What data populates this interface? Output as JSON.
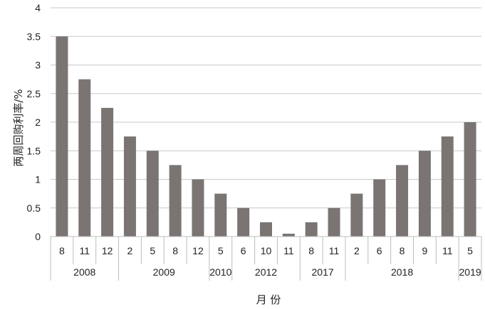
{
  "chart_data": {
    "type": "bar",
    "ylabel": "两周回购利率/%",
    "xlabel": "月 份",
    "ylim": [
      0,
      4
    ],
    "y_ticks": [
      "0",
      "0.5",
      "1",
      "1.5",
      "2",
      "2.5",
      "3",
      "3.5",
      "4"
    ],
    "grid": true,
    "bar_color": "#7a7573",
    "grid_color": "#c8c8c8",
    "categories": [
      "8",
      "11",
      "12",
      "2",
      "5",
      "8",
      "12",
      "5",
      "6",
      "10",
      "11",
      "8",
      "11",
      "2",
      "6",
      "8",
      "9",
      "11",
      "5"
    ],
    "values": [
      3.5,
      2.75,
      2.25,
      1.75,
      1.5,
      1.25,
      1.0,
      0.75,
      0.5,
      0.25,
      0.05,
      0.25,
      0.5,
      0.75,
      1.0,
      1.25,
      1.5,
      1.75,
      2.0
    ],
    "year_groups": [
      {
        "label": "2008",
        "count": 3
      },
      {
        "label": "2009",
        "count": 4
      },
      {
        "label": "2010",
        "count": 1
      },
      {
        "label": "2012",
        "count": 3
      },
      {
        "label": "2017",
        "count": 2
      },
      {
        "label": "2018",
        "count": 5
      },
      {
        "label": "2019",
        "count": 1
      }
    ]
  }
}
